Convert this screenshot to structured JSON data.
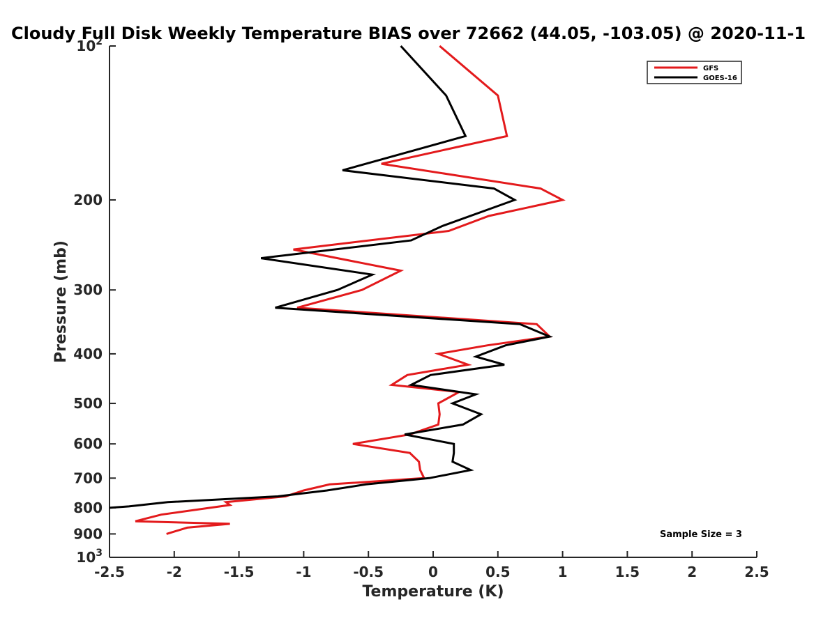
{
  "chart_data": {
    "type": "line",
    "title": "Cloudy Full Disk Weekly Temperature BIAS over 72662 (44.05, -103.05) @ 2020-11-1",
    "xlabel": "Temperature (K)",
    "ylabel": "Pressure (mb)",
    "xlim": [
      -2.5,
      2.5
    ],
    "ylim": [
      100,
      1000
    ],
    "y_scale": "log",
    "y_reversed": true,
    "grid": false,
    "legend_position": "top-right",
    "x_ticks": [
      "-2.5",
      "-2",
      "-1.5",
      "-1",
      "-0.5",
      "0",
      "0.5",
      "1",
      "1.5",
      "2",
      "2.5"
    ],
    "y_ticks": [
      {
        "value": 100,
        "label": "10",
        "sup": "2"
      },
      {
        "value": 200,
        "label": "200",
        "sup": ""
      },
      {
        "value": 300,
        "label": "300",
        "sup": ""
      },
      {
        "value": 400,
        "label": "400",
        "sup": ""
      },
      {
        "value": 500,
        "label": "500",
        "sup": ""
      },
      {
        "value": 600,
        "label": "600",
        "sup": ""
      },
      {
        "value": 700,
        "label": "700",
        "sup": ""
      },
      {
        "value": 800,
        "label": "800",
        "sup": ""
      },
      {
        "value": 900,
        "label": "900",
        "sup": ""
      },
      {
        "value": 1000,
        "label": "10",
        "sup": "3"
      }
    ],
    "series": [
      {
        "name": "GFS",
        "color": "#e31a1c",
        "points": [
          [
            0.05,
            100
          ],
          [
            0.5,
            125
          ],
          [
            0.57,
            150
          ],
          [
            -0.4,
            170
          ],
          [
            0.83,
            190
          ],
          [
            1.0,
            200
          ],
          [
            0.43,
            215
          ],
          [
            0.12,
            230
          ],
          [
            -1.08,
            250
          ],
          [
            -0.25,
            275
          ],
          [
            -0.55,
            300
          ],
          [
            -1.05,
            325
          ],
          [
            0.8,
            350
          ],
          [
            0.9,
            370
          ],
          [
            0.42,
            385
          ],
          [
            0.04,
            400
          ],
          [
            0.27,
            420
          ],
          [
            -0.2,
            440
          ],
          [
            -0.32,
            460
          ],
          [
            0.2,
            475
          ],
          [
            0.04,
            500
          ],
          [
            0.05,
            525
          ],
          [
            0.04,
            550
          ],
          [
            -0.18,
            575
          ],
          [
            -0.62,
            600
          ],
          [
            -0.18,
            625
          ],
          [
            -0.11,
            650
          ],
          [
            -0.1,
            675
          ],
          [
            -0.07,
            700
          ],
          [
            -0.8,
            720
          ],
          [
            -1.0,
            740
          ],
          [
            -1.14,
            760
          ],
          [
            -1.6,
            780
          ],
          [
            -1.57,
            790
          ],
          [
            -2.1,
            825
          ],
          [
            -2.3,
            850
          ],
          [
            -1.57,
            860
          ],
          [
            -1.9,
            875
          ],
          [
            -2.06,
            900
          ]
        ]
      },
      {
        "name": "GOES-16",
        "color": "#000000",
        "points": [
          [
            -0.25,
            100
          ],
          [
            0.1,
            125
          ],
          [
            0.25,
            150
          ],
          [
            -0.7,
            175
          ],
          [
            0.47,
            190
          ],
          [
            0.63,
            200
          ],
          [
            0.07,
            225
          ],
          [
            -0.17,
            240
          ],
          [
            -1.33,
            260
          ],
          [
            -0.47,
            280
          ],
          [
            -0.74,
            300
          ],
          [
            -1.22,
            325
          ],
          [
            0.67,
            350
          ],
          [
            0.9,
            370
          ],
          [
            0.56,
            385
          ],
          [
            0.33,
            405
          ],
          [
            0.55,
            420
          ],
          [
            -0.02,
            440
          ],
          [
            -0.17,
            460
          ],
          [
            0.33,
            480
          ],
          [
            0.15,
            500
          ],
          [
            0.37,
            525
          ],
          [
            0.23,
            550
          ],
          [
            -0.22,
            575
          ],
          [
            0.16,
            600
          ],
          [
            0.16,
            625
          ],
          [
            0.15,
            650
          ],
          [
            0.29,
            675
          ],
          [
            -0.03,
            700
          ],
          [
            -0.52,
            720
          ],
          [
            -0.82,
            740
          ],
          [
            -1.2,
            760
          ],
          [
            -2.05,
            780
          ],
          [
            -2.35,
            795
          ],
          [
            -2.5,
            800
          ]
        ]
      }
    ],
    "annotation": "Sample Size = 3"
  }
}
